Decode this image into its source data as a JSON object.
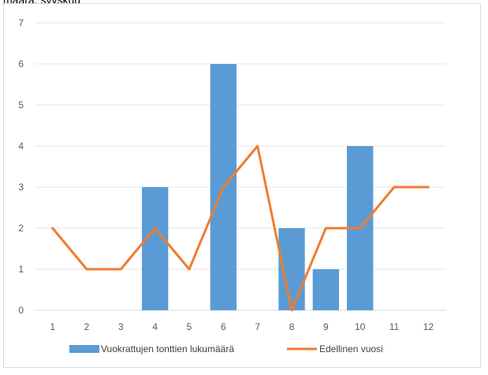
{
  "header_fragment": "määrä, syyskuu",
  "chart_data": {
    "type": "bar",
    "categories": [
      "1",
      "2",
      "3",
      "4",
      "5",
      "6",
      "7",
      "8",
      "9",
      "10",
      "11",
      "12"
    ],
    "series": [
      {
        "name": "Vuokrattujen tonttien lukumäärä",
        "type": "bar",
        "color": "#5b9bd5",
        "values": [
          0,
          0,
          0,
          3,
          0,
          6,
          0,
          2,
          1,
          4,
          0,
          0
        ]
      },
      {
        "name": "Edellinen vuosi",
        "type": "line",
        "color": "#ed7d31",
        "values": [
          2,
          1,
          1,
          2,
          1,
          3,
          4,
          0,
          2,
          2,
          3,
          3
        ]
      }
    ],
    "yticks": [
      "0",
      "1",
      "2",
      "3",
      "4",
      "5",
      "6",
      "7"
    ],
    "ylim": [
      0,
      7
    ],
    "grid": true,
    "legend_position": "bottom"
  }
}
